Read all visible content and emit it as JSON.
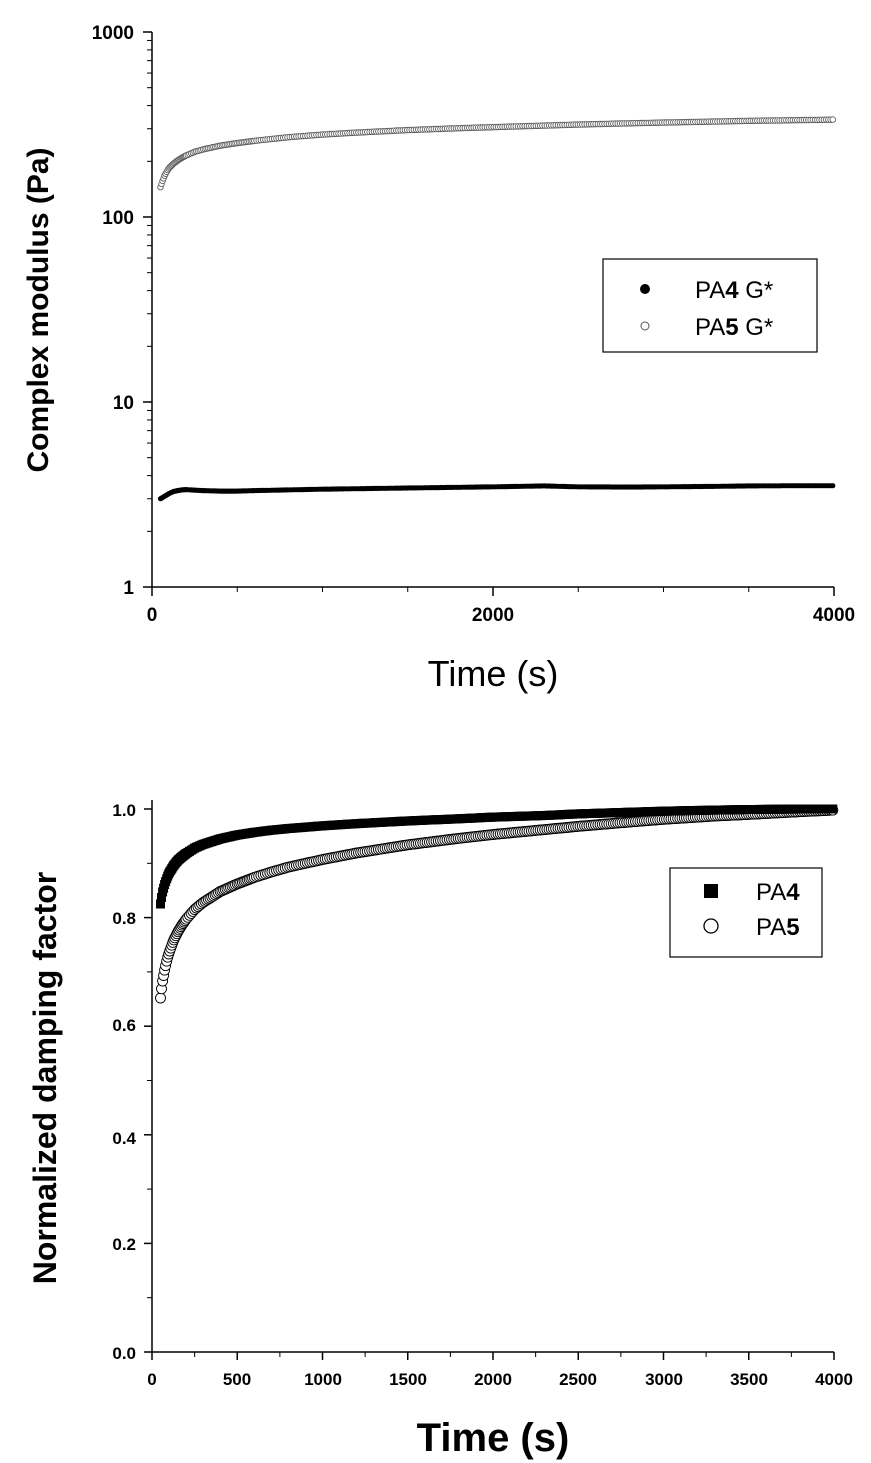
{
  "chart_data": [
    {
      "type": "scatter",
      "xlabel": "Time (s)",
      "ylabel": "Complex modulus (Pa)",
      "xlim": [
        0,
        4000
      ],
      "ylim": [
        1,
        1000
      ],
      "yscale": "log",
      "xticks": [
        "0",
        "2000",
        "4000"
      ],
      "yticks": [
        "1",
        "10",
        "100",
        "1000"
      ],
      "grid": false,
      "legend_position": "right",
      "series": [
        {
          "name_parts": [
            "PA",
            "4",
            " G*"
          ],
          "marker": "filled-circle",
          "color": "#000000",
          "x": [
            50,
            75,
            100,
            125,
            150,
            175,
            200,
            250,
            300,
            400,
            500,
            600,
            800,
            1000,
            1200,
            1500,
            1800,
            2000,
            2300,
            2500,
            2800,
            3000,
            3300,
            3500,
            3800,
            4000
          ],
          "y": [
            3.0,
            3.1,
            3.2,
            3.28,
            3.32,
            3.35,
            3.36,
            3.34,
            3.32,
            3.3,
            3.3,
            3.32,
            3.35,
            3.38,
            3.4,
            3.43,
            3.46,
            3.48,
            3.52,
            3.48,
            3.47,
            3.48,
            3.5,
            3.52,
            3.53,
            3.53
          ]
        },
        {
          "name_parts": [
            "PA",
            "5",
            " G*"
          ],
          "marker": "open-circle",
          "color": "#555555",
          "x": [
            50,
            60,
            75,
            90,
            100,
            125,
            150,
            175,
            200,
            250,
            300,
            400,
            500,
            600,
            800,
            1000,
            1200,
            1500,
            1800,
            2000,
            2300,
            2500,
            2800,
            3000,
            3300,
            3500,
            3800,
            4000
          ],
          "y": [
            145,
            155,
            168,
            178,
            184,
            194,
            202,
            209,
            215,
            225,
            232,
            243,
            251,
            258,
            270,
            279,
            286,
            295,
            302,
            306,
            312,
            316,
            321,
            324,
            328,
            331,
            334,
            336
          ]
        }
      ]
    },
    {
      "type": "scatter",
      "xlabel": "Time (s)",
      "ylabel": "Normalized damping factor",
      "xlim": [
        0,
        4000
      ],
      "ylim": [
        0,
        1.05
      ],
      "xticks": [
        "0",
        "500",
        "1000",
        "1500",
        "2000",
        "2500",
        "3000",
        "3500",
        "4000"
      ],
      "yticks": [
        "0.0",
        "0.2",
        "0.4",
        "0.6",
        "0.8",
        "1.0"
      ],
      "grid": false,
      "legend_position": "right",
      "series": [
        {
          "name_parts": [
            "PA",
            "4"
          ],
          "marker": "filled-square",
          "color": "#000000",
          "x": [
            50,
            60,
            75,
            90,
            100,
            125,
            150,
            175,
            200,
            250,
            300,
            400,
            500,
            600,
            700,
            800,
            1000,
            1200,
            1500,
            1800,
            2000,
            2300,
            2500,
            2800,
            3000,
            3300,
            3500,
            3800,
            4000
          ],
          "y": [
            0.825,
            0.845,
            0.862,
            0.875,
            0.882,
            0.895,
            0.905,
            0.912,
            0.918,
            0.928,
            0.935,
            0.945,
            0.952,
            0.957,
            0.961,
            0.964,
            0.969,
            0.973,
            0.978,
            0.982,
            0.985,
            0.988,
            0.991,
            0.994,
            0.996,
            0.998,
            0.999,
            1.0,
            1.0
          ]
        },
        {
          "name_parts": [
            "PA",
            "5"
          ],
          "marker": "open-circle",
          "color": "#000000",
          "x": [
            50,
            60,
            75,
            90,
            100,
            125,
            150,
            175,
            200,
            250,
            300,
            400,
            500,
            600,
            700,
            800,
            1000,
            1200,
            1500,
            1800,
            2000,
            2300,
            2500,
            2800,
            3000,
            3300,
            3500,
            3800,
            4000
          ],
          "y": [
            0.652,
            0.68,
            0.705,
            0.725,
            0.735,
            0.757,
            0.773,
            0.786,
            0.797,
            0.815,
            0.828,
            0.848,
            0.862,
            0.874,
            0.884,
            0.893,
            0.907,
            0.919,
            0.934,
            0.946,
            0.953,
            0.962,
            0.968,
            0.976,
            0.981,
            0.987,
            0.99,
            0.995,
            0.998
          ]
        }
      ]
    }
  ]
}
